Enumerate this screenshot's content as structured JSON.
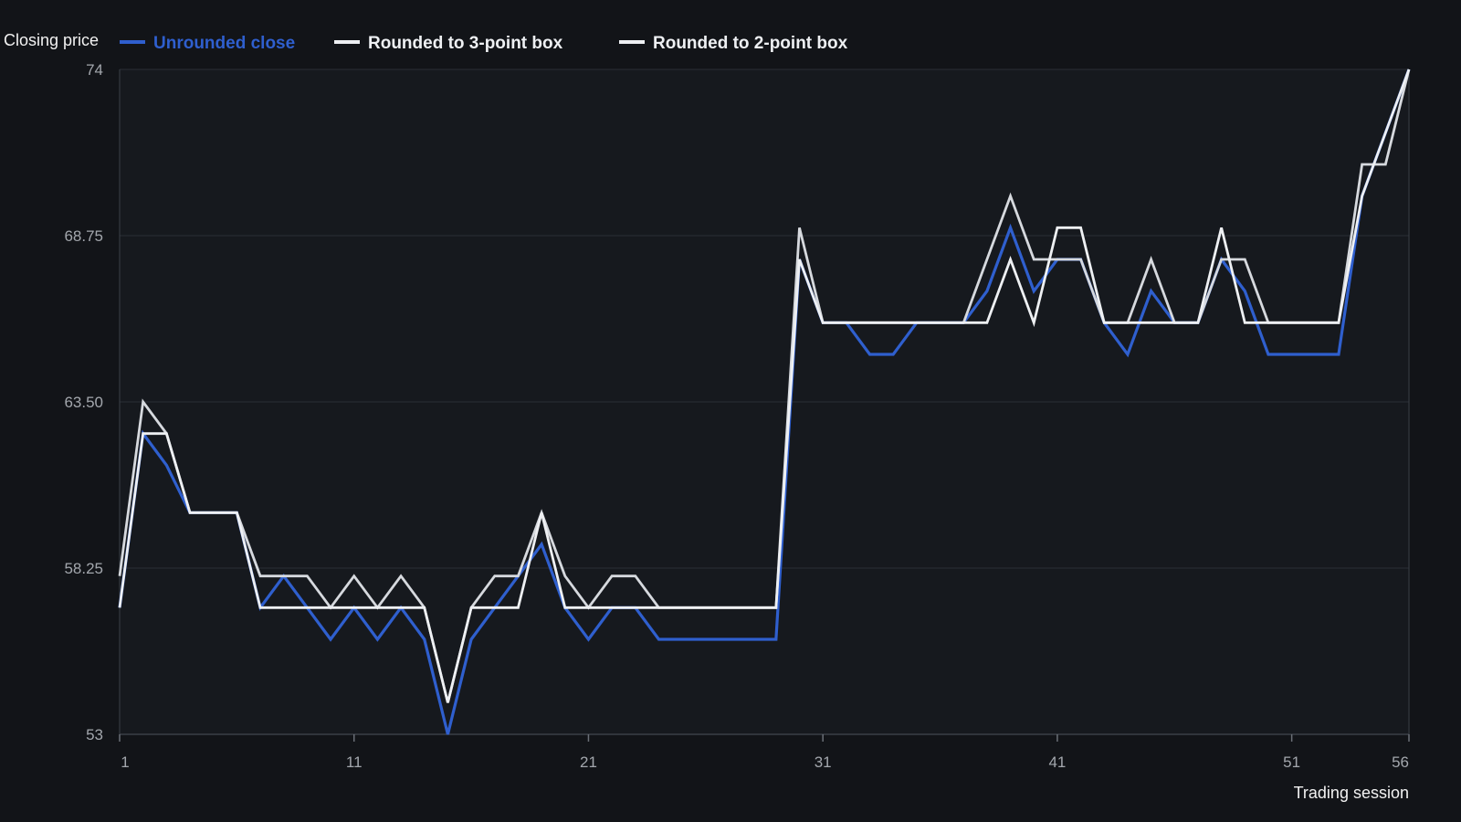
{
  "chart_data": {
    "type": "line",
    "ylabel": "Closing price",
    "xlabel": "Trading session",
    "xlim": [
      1,
      56
    ],
    "ylim": [
      53,
      74
    ],
    "x_ticks": [
      1,
      11,
      21,
      31,
      41,
      51,
      56
    ],
    "y_ticks": [
      {
        "value": 74,
        "label": "74"
      },
      {
        "value": 68.75,
        "label": "68.75"
      },
      {
        "value": 63.5,
        "label": "63.50"
      },
      {
        "value": 58.25,
        "label": "58.25"
      },
      {
        "value": 53,
        "label": "53"
      }
    ],
    "grid": "horizontal",
    "legend": "top-left",
    "x": [
      1,
      2,
      3,
      4,
      5,
      6,
      7,
      8,
      9,
      10,
      11,
      12,
      13,
      14,
      15,
      16,
      17,
      18,
      19,
      20,
      21,
      22,
      23,
      24,
      25,
      26,
      27,
      28,
      29,
      30,
      31,
      32,
      33,
      34,
      35,
      36,
      37,
      38,
      39,
      40,
      41,
      42,
      43,
      44,
      45,
      46,
      47,
      48,
      49,
      50,
      51,
      52,
      53,
      54,
      55,
      56
    ],
    "series": [
      {
        "name": "Unrounded close",
        "color": "#2f5fce",
        "values": [
          57,
          62.5,
          61.5,
          60,
          60,
          60,
          57,
          58,
          57,
          56,
          57,
          56,
          57,
          56,
          53,
          56,
          57,
          58,
          59,
          57,
          56,
          57,
          57,
          56,
          56,
          56,
          56,
          56,
          56,
          68,
          66,
          66,
          65,
          65,
          66,
          66,
          66,
          67,
          69,
          67,
          68,
          68,
          66,
          65,
          67,
          66,
          66,
          68,
          67,
          65,
          65,
          65,
          65,
          70,
          72,
          74
        ]
      },
      {
        "name": "Rounded to 3-point box",
        "color": "#d6d9de",
        "values": [
          58,
          63.5,
          62.5,
          60,
          60,
          60,
          58,
          58,
          58,
          57,
          58,
          57,
          58,
          57,
          54,
          57,
          58,
          58,
          60,
          58,
          57,
          58,
          58,
          57,
          57,
          57,
          57,
          57,
          57,
          69,
          66,
          66,
          66,
          66,
          66,
          66,
          66,
          68,
          70,
          68,
          68,
          68,
          66,
          66,
          68,
          66,
          66,
          68,
          68,
          66,
          66,
          66,
          66,
          71,
          71,
          74
        ]
      },
      {
        "name": "Rounded to 2-point box",
        "color": "#eef0f3",
        "values": [
          57,
          62.5,
          62.5,
          60,
          60,
          60,
          57,
          57,
          57,
          57,
          57,
          57,
          57,
          57,
          54,
          57,
          57,
          57,
          60,
          57,
          57,
          57,
          57,
          57,
          57,
          57,
          57,
          57,
          57,
          68,
          66,
          66,
          66,
          66,
          66,
          66,
          66,
          66,
          68,
          66,
          69,
          69,
          66,
          66,
          66,
          66,
          66,
          69,
          66,
          66,
          66,
          66,
          66,
          70,
          72,
          74
        ]
      }
    ]
  }
}
